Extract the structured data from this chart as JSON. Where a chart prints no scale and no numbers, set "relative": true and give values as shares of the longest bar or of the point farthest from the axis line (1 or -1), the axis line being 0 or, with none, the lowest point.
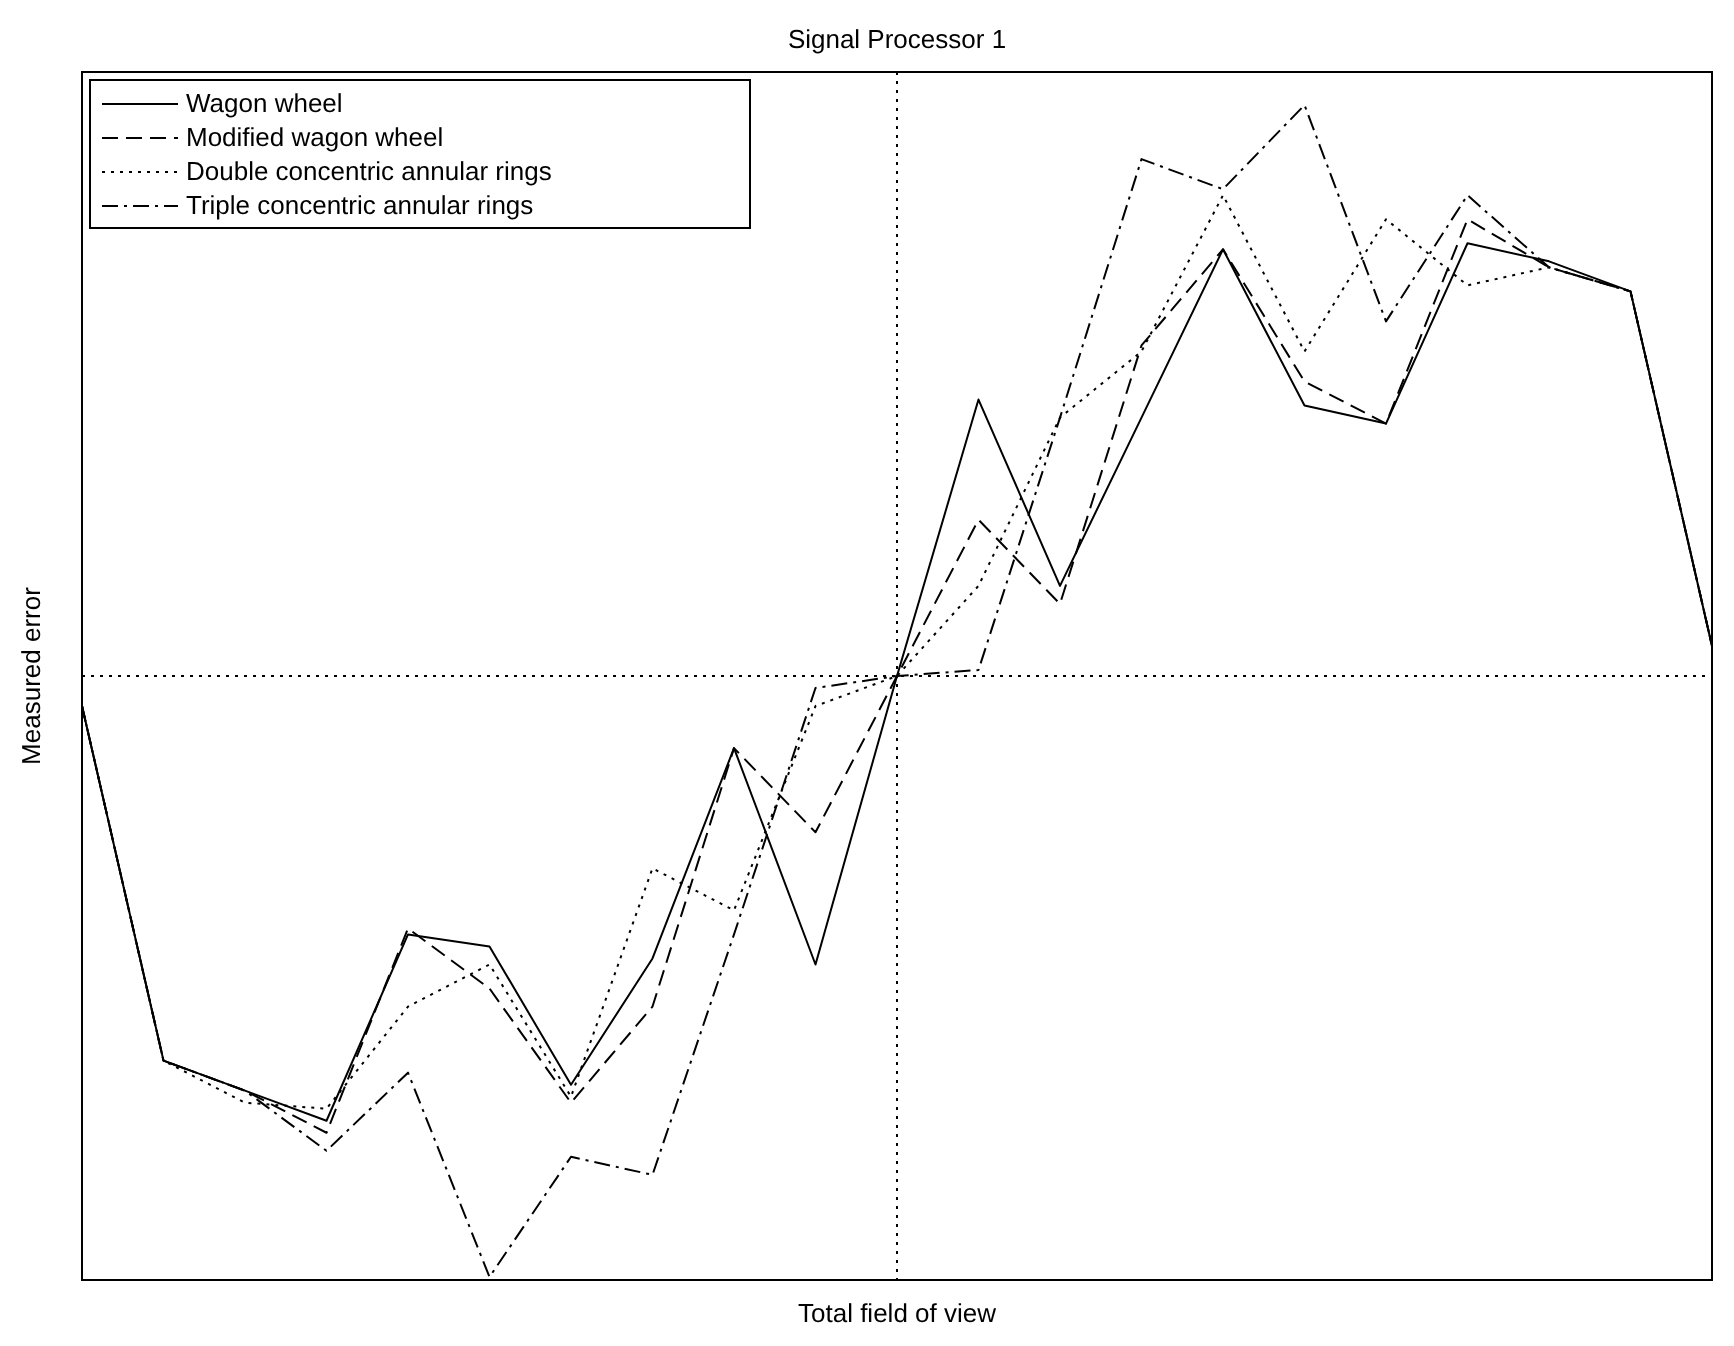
{
  "chart_data": {
    "type": "line",
    "title": "Signal Processor 1",
    "xlabel": "Total field of view",
    "ylabel": "Measured error",
    "relative": true,
    "legend": "top left",
    "marker": "none",
    "categories": [
      null,
      null,
      null,
      null,
      null,
      null,
      null,
      null,
      null,
      null,
      null,
      null,
      null,
      null,
      null,
      null,
      null,
      null,
      null,
      null,
      null
    ],
    "series": [
      {
        "name": "Wagon wheel",
        "color": "#000000",
        "line_style": "solid",
        "values": [
          -0.05,
          -0.64,
          -0.69,
          -0.74,
          -0.43,
          -0.45,
          -0.68,
          -0.47,
          -0.12,
          -0.48,
          0,
          0.46,
          0.15,
          0.43,
          0.71,
          0.45,
          0.42,
          0.72,
          0.69,
          0.64,
          0.05
        ]
      },
      {
        "name": "Modified wagon wheel",
        "color": "#000000",
        "line_style": "dashed",
        "values": [
          -0.05,
          -0.64,
          -0.69,
          -0.76,
          -0.42,
          -0.52,
          -0.71,
          -0.55,
          -0.12,
          -0.26,
          0,
          0.26,
          0.12,
          0.55,
          0.71,
          0.49,
          0.42,
          0.76,
          0.68,
          0.64,
          0.05
        ]
      },
      {
        "name": "Double concentric annular rings",
        "color": "#000000",
        "line_style": "dotted",
        "values": [
          -0.05,
          -0.64,
          -0.71,
          -0.72,
          -0.55,
          -0.48,
          -0.7,
          -0.32,
          -0.39,
          -0.05,
          0,
          0.15,
          0.43,
          0.54,
          0.8,
          0.54,
          0.76,
          0.65,
          0.68,
          0.64,
          0.05
        ]
      },
      {
        "name": "Triple concentric annular rings",
        "color": "#000000",
        "line_style": "dashdot",
        "values": [
          -0.05,
          -0.64,
          -0.69,
          -0.79,
          -0.66,
          -1,
          -0.8,
          -0.83,
          -0.43,
          -0.02,
          0,
          0.01,
          0.43,
          0.86,
          0.81,
          0.95,
          0.59,
          0.8,
          0.68,
          0.64,
          0.05
        ]
      }
    ]
  }
}
